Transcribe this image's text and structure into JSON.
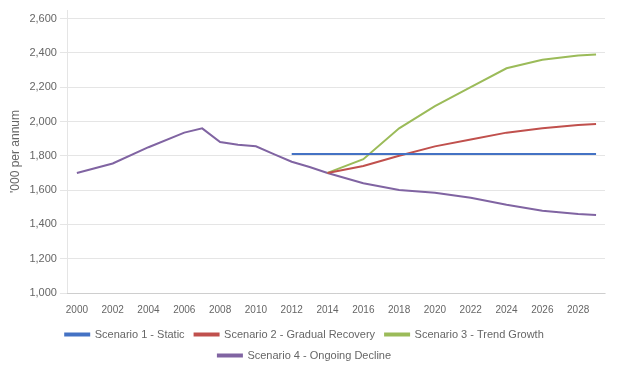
{
  "chart_data": {
    "type": "line",
    "y_label": "'000 per annum",
    "series": [
      {
        "name": "Scenario 1 - Static",
        "color": "#4472C4",
        "x": [
          2012,
          2014,
          2016,
          2018,
          2020,
          2022,
          2024,
          2026,
          2028,
          2029
        ],
        "values": [
          1810,
          1810,
          1810,
          1810,
          1810,
          1810,
          1810,
          1810,
          1810,
          1810
        ]
      },
      {
        "name": "Scenario 2 - Gradual Recovery",
        "color": "#C0504D",
        "x": [
          2014,
          2016,
          2018,
          2020,
          2022,
          2024,
          2026,
          2028,
          2029
        ],
        "values": [
          1700,
          1740,
          1800,
          1855,
          1895,
          1935,
          1960,
          1980,
          1985
        ]
      },
      {
        "name": "Scenario 3 - Trend Growth",
        "color": "#9BBB59",
        "x": [
          2014,
          2016,
          2018,
          2020,
          2022,
          2024,
          2026,
          2028,
          2029
        ],
        "values": [
          1700,
          1780,
          1960,
          2090,
          2200,
          2310,
          2360,
          2385,
          2390
        ]
      },
      {
        "name": "Scenario 4 - Ongoing Decline",
        "color": "#8064A2",
        "x": [
          2000,
          2002,
          2004,
          2006,
          2007,
          2008,
          2009,
          2010,
          2011,
          2012,
          2013,
          2014,
          2016,
          2018,
          2020,
          2022,
          2024,
          2026,
          2028,
          2029
        ],
        "values": [
          1700,
          1755,
          1850,
          1935,
          1960,
          1880,
          1865,
          1855,
          1810,
          1765,
          1735,
          1700,
          1640,
          1600,
          1585,
          1555,
          1515,
          1480,
          1460,
          1455
        ]
      }
    ],
    "xlim": [
      1999.5,
      2029.5
    ],
    "xticks": [
      2000,
      2002,
      2004,
      2006,
      2008,
      2010,
      2012,
      2014,
      2016,
      2018,
      2020,
      2022,
      2024,
      2026,
      2028
    ],
    "ylim": [
      1000,
      2650
    ],
    "yticks": [
      {
        "value": 1000,
        "label": "1,000"
      },
      {
        "value": 1200,
        "label": "1,200"
      },
      {
        "value": 1400,
        "label": "1,400"
      },
      {
        "value": 1600,
        "label": "1,600"
      },
      {
        "value": 1800,
        "label": "1,800"
      },
      {
        "value": 2000,
        "label": "2,000"
      },
      {
        "value": 2200,
        "label": "2,200"
      },
      {
        "value": 2400,
        "label": "2,400"
      },
      {
        "value": 2600,
        "label": "2,600"
      }
    ],
    "grid": true,
    "legend": "bottom"
  }
}
